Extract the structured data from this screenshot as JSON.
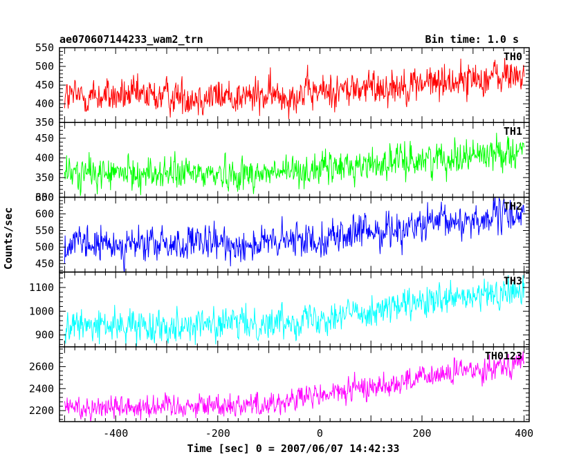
{
  "header": {
    "title": "ae070607144233_wam2_trn",
    "bin_time": "Bin time: 1.0 s"
  },
  "chart_data": {
    "type": "line",
    "xlabel": "Time [sec] 0 = 2007/06/07 14:42:33",
    "ylabel": "Counts/sec",
    "xlim": [
      -510,
      410
    ],
    "xticks": [
      -400,
      -200,
      0,
      200,
      400
    ],
    "x_range_data": [
      -500,
      400
    ],
    "bin_time": 1.0,
    "grid": false,
    "panels": [
      {
        "name": "TH0",
        "color": "#ff0000",
        "ylim": [
          350,
          550
        ],
        "yticks": [
          350,
          400,
          450,
          500,
          550
        ],
        "trend": [
          [
            -500,
            420
          ],
          [
            -100,
            420
          ],
          [
            400,
            478
          ]
        ],
        "noise_amplitude": 28
      },
      {
        "name": "TH1",
        "color": "#00ff00",
        "ylim": [
          300,
          490
        ],
        "yticks": [
          300,
          350,
          400,
          450
        ],
        "trend": [
          [
            -500,
            360
          ],
          [
            -100,
            360
          ],
          [
            400,
            420
          ]
        ],
        "noise_amplitude": 24
      },
      {
        "name": "TH2",
        "color": "#0000ff",
        "ylim": [
          425,
          650
        ],
        "yticks": [
          450,
          500,
          550,
          600,
          650
        ],
        "trend": [
          [
            -500,
            505
          ],
          [
            -100,
            510
          ],
          [
            400,
            600
          ]
        ],
        "noise_amplitude": 30
      },
      {
        "name": "TH3",
        "color": "#00ffff",
        "ylim": [
          850,
          1165
        ],
        "yticks": [
          900,
          1000,
          1100
        ],
        "trend": [
          [
            -500,
            935
          ],
          [
            -100,
            950
          ],
          [
            400,
            1085
          ]
        ],
        "noise_amplitude": 38
      },
      {
        "name": "TH0123",
        "color": "#ff00ff",
        "ylim": [
          2100,
          2780
        ],
        "yticks": [
          2200,
          2400,
          2600
        ],
        "trend": [
          [
            -500,
            2230
          ],
          [
            -100,
            2260
          ],
          [
            400,
            2650
          ]
        ],
        "noise_amplitude": 65
      }
    ]
  }
}
